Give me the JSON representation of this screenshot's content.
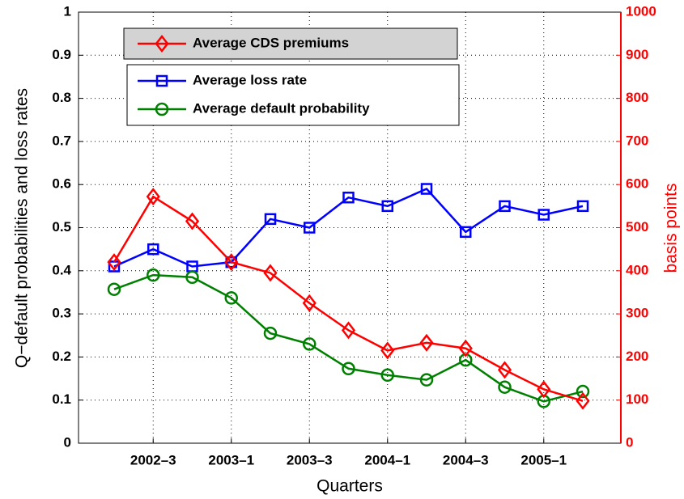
{
  "chart_data": {
    "type": "line",
    "categories": [
      null,
      "2002–3",
      null,
      "2003–1",
      null,
      "2003–3",
      null,
      "2004–1",
      null,
      "2004–3",
      null,
      "2005–1",
      null
    ],
    "x_label": "Quarters",
    "y_label": "Q−default probabilities and loss rates",
    "y2_label": "basis points",
    "ylim": [
      0,
      1
    ],
    "yticks": [
      0,
      0.1,
      0.2,
      0.3,
      0.4,
      0.5,
      0.6,
      0.7,
      0.8,
      0.9,
      1
    ],
    "y2lim": [
      0,
      1000
    ],
    "y2ticks": [
      0,
      100,
      200,
      300,
      400,
      500,
      600,
      700,
      800,
      900,
      1000
    ],
    "grid": true,
    "series": [
      {
        "name": "Average loss rate",
        "color": "#0000ff",
        "marker": "square",
        "values": [
          0.41,
          0.45,
          0.41,
          0.42,
          0.52,
          0.5,
          0.57,
          0.55,
          0.59,
          0.49,
          0.55,
          0.53,
          0.55
        ]
      },
      {
        "name": "Average default probability",
        "color": "#008000",
        "marker": "circle",
        "values": [
          0.357,
          0.39,
          0.385,
          0.337,
          0.255,
          0.23,
          0.173,
          0.158,
          0.147,
          0.193,
          0.13,
          0.097,
          0.12
        ]
      },
      {
        "name": "Average CDS premiums",
        "color": "#ff0000",
        "marker": "diamond",
        "axis": "y2",
        "values": [
          420,
          572,
          515,
          420,
          395,
          325,
          262,
          215,
          233,
          220,
          170,
          125,
          98
        ]
      }
    ]
  }
}
